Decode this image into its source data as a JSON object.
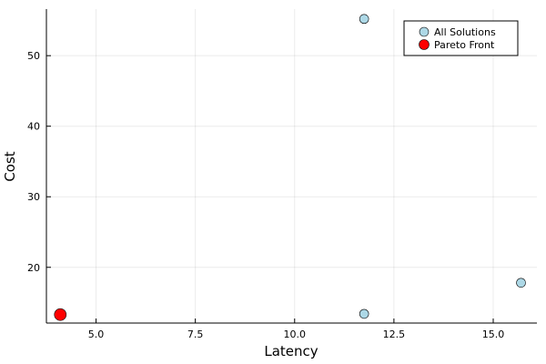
{
  "chart_data": {
    "type": "scatter",
    "title": "",
    "xlabel": "Latency",
    "ylabel": "Cost",
    "xlim": [
      3.75,
      16.1
    ],
    "ylim": [
      12.1,
      56.6
    ],
    "xticks": [
      5.0,
      7.5,
      10.0,
      12.5,
      15.0
    ],
    "xtick_labels": [
      "5.0",
      "7.5",
      "10.0",
      "12.5",
      "15.0"
    ],
    "yticks": [
      20,
      30,
      40,
      50
    ],
    "ytick_labels": [
      "20",
      "30",
      "40",
      "50"
    ],
    "grid": true,
    "legend_position": "top-right",
    "series": [
      {
        "name": "All Solutions",
        "color": "#add8e6",
        "marker": "circle",
        "points": [
          {
            "x": 4.1,
            "y": 13.3
          },
          {
            "x": 11.75,
            "y": 13.4
          },
          {
            "x": 11.75,
            "y": 55.2
          },
          {
            "x": 15.7,
            "y": 17.8
          }
        ]
      },
      {
        "name": "Pareto Front",
        "color": "#ff0000",
        "marker": "circle",
        "points": [
          {
            "x": 4.1,
            "y": 13.3
          }
        ]
      }
    ]
  }
}
